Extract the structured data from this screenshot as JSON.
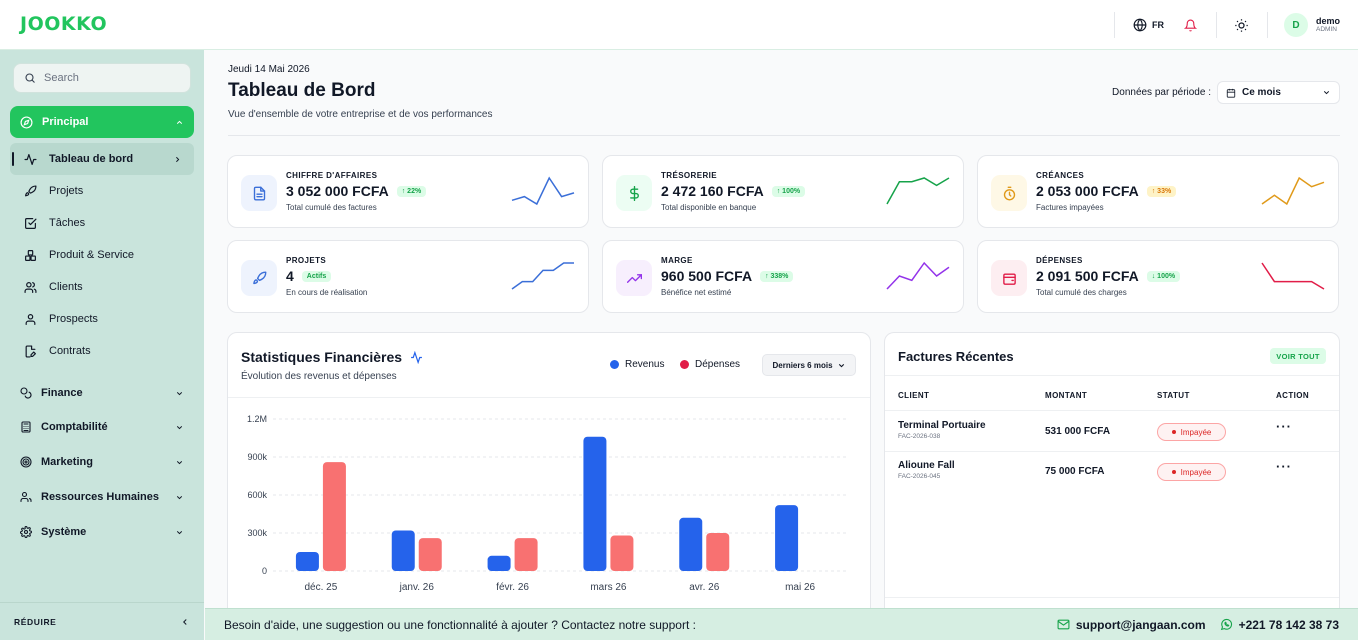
{
  "app": {
    "logo": "JOOKKO"
  },
  "topbar": {
    "lang": "FR",
    "user": {
      "initial": "D",
      "name": "demo",
      "role": "ADMIN"
    }
  },
  "sidebar": {
    "search_placeholder": "Search",
    "principal": "Principal",
    "sub_items": [
      {
        "label": "Tableau de bord",
        "icon": "activity-icon"
      },
      {
        "label": "Projets",
        "icon": "rocket-icon"
      },
      {
        "label": "Tâches",
        "icon": "checkbox-icon"
      },
      {
        "label": "Produit & Service",
        "icon": "boxes-icon"
      },
      {
        "label": "Clients",
        "icon": "users-icon"
      },
      {
        "label": "Prospects",
        "icon": "user-icon"
      },
      {
        "label": "Contrats",
        "icon": "file-edit-icon"
      }
    ],
    "groups": [
      {
        "label": "Finance",
        "icon": "coins-icon"
      },
      {
        "label": "Comptabilité",
        "icon": "calculator-icon"
      },
      {
        "label": "Marketing",
        "icon": "target-icon"
      },
      {
        "label": "Ressources Humaines",
        "icon": "team-icon"
      },
      {
        "label": "Système",
        "icon": "gear-icon"
      }
    ],
    "reduce": "RÉDUIRE"
  },
  "header": {
    "date": "Jeudi 14 Mai 2026",
    "title": "Tableau de Bord",
    "subtitle": "Vue d'ensemble de votre entreprise et de vos performances",
    "period_label": "Données par période :",
    "period_value": "Ce mois"
  },
  "kpis": [
    {
      "label": "CHIFFRE D'AFFAIRES",
      "value": "3 052 000 FCFA",
      "badge": "↑ 22%",
      "sub": "Total cumulé des factures",
      "color": "#3b6fd8",
      "bg": "#eef3fd",
      "badge_bg": "#dcfce7",
      "badge_color": "#16a34a",
      "icon": "invoice-icon",
      "trend": [
        3,
        4,
        2,
        9,
        4,
        5
      ]
    },
    {
      "label": "TRÉSORERIE",
      "value": "2 472 160 FCFA",
      "badge": "↑ 100%",
      "sub": "Total disponible en banque",
      "color": "#16a34a",
      "bg": "#ecfdf3",
      "badge_bg": "#dcfce7",
      "badge_color": "#16a34a",
      "icon": "dollar-icon",
      "trend": [
        1,
        7,
        7,
        8,
        6,
        8
      ]
    },
    {
      "label": "CRÉANCES",
      "value": "2 053 000 FCFA",
      "badge": "↑ 33%",
      "sub": "Factures impayées",
      "color": "#e09a1a",
      "bg": "#fef8e6",
      "badge_bg": "#fef3c7",
      "badge_color": "#d97706",
      "icon": "stopwatch-icon",
      "trend": [
        3,
        5,
        3,
        9,
        7,
        8
      ]
    },
    {
      "label": "PROJETS",
      "value": "4",
      "badge": "Actifs",
      "sub": "En cours de réalisation",
      "color": "#3b6fd8",
      "bg": "#eef3fd",
      "badge_bg": "#dcfce7",
      "badge_color": "#16a34a",
      "icon": "rocket-icon",
      "trend": [
        1,
        3,
        3,
        6,
        6,
        8,
        8
      ]
    },
    {
      "label": "MARGE",
      "value": "960 500 FCFA",
      "badge": "↑ 338%",
      "sub": "Bénéfice net estimé",
      "color": "#9333ea",
      "bg": "#f7effd",
      "badge_bg": "#dcfce7",
      "badge_color": "#16a34a",
      "icon": "trending-up-icon",
      "trend": [
        2,
        5,
        4,
        8,
        5,
        7
      ]
    },
    {
      "label": "DÉPENSES",
      "value": "2 091 500 FCFA",
      "badge": "↓ 100%",
      "sub": "Total cumulé des charges",
      "color": "#e11d48",
      "bg": "#fdeef1",
      "badge_bg": "#dcfce7",
      "badge_color": "#16a34a",
      "icon": "wallet-icon",
      "trend": [
        9,
        4,
        4,
        4,
        4,
        2
      ]
    }
  ],
  "stats": {
    "title": "Statistiques Financières",
    "subtitle": "Évolution des revenus et dépenses",
    "legend_revenus": "Revenus",
    "legend_depenses": "Dépenses",
    "range": "Derniers 6 mois"
  },
  "chart_data": {
    "type": "bar",
    "categories": [
      "déc. 25",
      "janv. 26",
      "févr. 26",
      "mars 26",
      "avr. 26",
      "mai 26"
    ],
    "series": [
      {
        "name": "Revenus",
        "color": "#2563eb",
        "values": [
          150000,
          320000,
          120000,
          1060000,
          420000,
          520000
        ]
      },
      {
        "name": "Dépenses",
        "color": "#f87171",
        "values": [
          860000,
          260000,
          260000,
          280000,
          300000,
          0
        ]
      }
    ],
    "yticks": [
      "0",
      "300k",
      "600k",
      "900k",
      "1.2M"
    ],
    "ylim": [
      0,
      1200000
    ]
  },
  "invoices": {
    "title": "Factures Récentes",
    "voir_tout": "VOIR TOUT",
    "headers": [
      "CLIENT",
      "MONTANT",
      "STATUT",
      "ACTION"
    ],
    "rows": [
      {
        "client": "Terminal Portuaire",
        "ref": "FAC-2026-038",
        "amount": "531 000 FCFA",
        "status": "Impayée"
      },
      {
        "client": "Alioune Fall",
        "ref": "FAC-2026-045",
        "amount": "75 000 FCFA",
        "status": "Impayée"
      }
    ]
  },
  "footer": {
    "text": "Besoin d'aide, une suggestion ou une fonctionnalité à ajouter ? Contactez notre support :",
    "email": "support@jangaan.com",
    "phone": "+221 78 142 38 73"
  }
}
